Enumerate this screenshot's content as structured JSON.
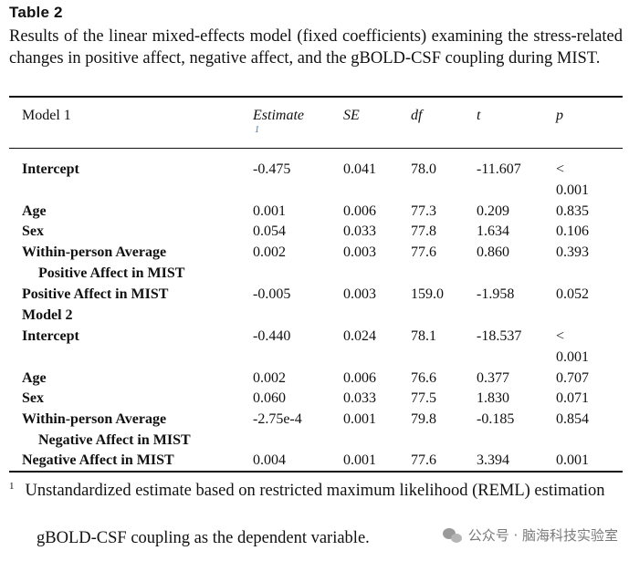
{
  "table_label": "Table 2",
  "caption": "Results of the linear mixed-effects model (fixed coefficients) examining the stress-related changes in positive affect, negative affect, and the gBOLD-CSF coupling during MIST.",
  "headers": {
    "model": "Model 1",
    "estimate": "Estimate",
    "estimate_note": "1",
    "se": "SE",
    "df": "df",
    "t": "t",
    "p": "p"
  },
  "rows": [
    {
      "label": "Intercept",
      "label2": "",
      "estimate": "-0.475",
      "se": "0.041",
      "df": "78.0",
      "t": "-11.607",
      "p": "<",
      "p2": "0.001"
    },
    {
      "label": "Age",
      "label2": "",
      "estimate": "0.001",
      "se": "0.006",
      "df": "77.3",
      "t": "0.209",
      "p": "0.835",
      "p2": ""
    },
    {
      "label": "Sex",
      "label2": "",
      "estimate": "0.054",
      "se": "0.033",
      "df": "77.8",
      "t": "1.634",
      "p": "0.106",
      "p2": ""
    },
    {
      "label": "Within-person Average",
      "label2": "Positive Affect in MIST",
      "estimate": "0.002",
      "se": "0.003",
      "df": "77.6",
      "t": "0.860",
      "p": "0.393",
      "p2": ""
    },
    {
      "label": "Positive Affect in MIST",
      "label2": "",
      "estimate": "-0.005",
      "se": "0.003",
      "df": "159.0",
      "t": "-1.958",
      "p": "0.052",
      "p2": ""
    },
    {
      "label": "Model 2",
      "label2": "",
      "estimate": "",
      "se": "",
      "df": "",
      "t": "",
      "p": "",
      "p2": ""
    },
    {
      "label": "Intercept",
      "label2": "",
      "estimate": "-0.440",
      "se": "0.024",
      "df": "78.1",
      "t": "-18.537",
      "p": "<",
      "p2": "0.001"
    },
    {
      "label": "Age",
      "label2": "",
      "estimate": "0.002",
      "se": "0.006",
      "df": "76.6",
      "t": "0.377",
      "p": "0.707",
      "p2": ""
    },
    {
      "label": "Sex",
      "label2": "",
      "estimate": "0.060",
      "se": "0.033",
      "df": "77.5",
      "t": "1.830",
      "p": "0.071",
      "p2": ""
    },
    {
      "label": "Within-person Average",
      "label2": "Negative Affect in MIST",
      "estimate": "-2.75e-4",
      "se": "0.001",
      "df": "79.8",
      "t": "-0.185",
      "p": "0.854",
      "p2": ""
    },
    {
      "label": "Negative Affect in MIST",
      "label2": "",
      "estimate": "0.004",
      "se": "0.001",
      "df": "77.6",
      "t": "3.394",
      "p": "0.001",
      "p2": ""
    }
  ],
  "footnote": {
    "marker": "1",
    "text": "Unstandardized estimate based on restricted maximum likelihood (REML) estimation"
  },
  "dependent_note": "gBOLD-CSF coupling as the dependent variable.",
  "watermark": {
    "icon": "wechat-icon",
    "text": "公众号 · 脑海科技实验室"
  }
}
